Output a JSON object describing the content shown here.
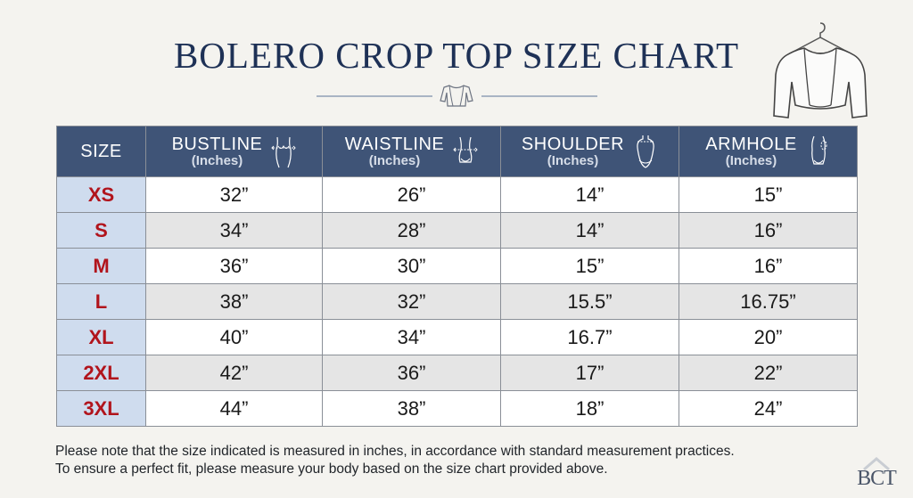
{
  "title": "BOLERO CROP TOP SIZE CHART",
  "table": {
    "headers": [
      {
        "name": "SIZE",
        "unit": ""
      },
      {
        "name": "BUSTLINE",
        "unit": "(Inches)",
        "icon": "bust-measure-icon"
      },
      {
        "name": "WAISTLINE",
        "unit": "(Inches)",
        "icon": "waist-measure-icon"
      },
      {
        "name": "SHOULDER",
        "unit": "(Inches)",
        "icon": "shoulder-measure-icon"
      },
      {
        "name": "ARMHOLE",
        "unit": "(Inches)",
        "icon": "armhole-measure-icon"
      }
    ],
    "rows": [
      {
        "size": "XS",
        "bustline": "32”",
        "waistline": "26”",
        "shoulder": "14”",
        "armhole": "15”"
      },
      {
        "size": "S",
        "bustline": "34”",
        "waistline": "28”",
        "shoulder": "14”",
        "armhole": "16”"
      },
      {
        "size": "M",
        "bustline": "36”",
        "waistline": "30”",
        "shoulder": "15”",
        "armhole": "16”"
      },
      {
        "size": "L",
        "bustline": "38”",
        "waistline": "32”",
        "shoulder": "15.5”",
        "armhole": "16.75”"
      },
      {
        "size": "XL",
        "bustline": "40”",
        "waistline": "34”",
        "shoulder": "16.7”",
        "armhole": "20”"
      },
      {
        "size": "2XL",
        "bustline": "42”",
        "waistline": "36”",
        "shoulder": "17”",
        "armhole": "22”"
      },
      {
        "size": "3XL",
        "bustline": "44”",
        "waistline": "38”",
        "shoulder": "18”",
        "armhole": "24”"
      }
    ]
  },
  "note": {
    "line1": "Please note that the size indicated is measured in inches, in accordance with standard measurement practices.",
    "line2": "To ensure a perfect fit, please measure your body based on the size chart provided above."
  },
  "logo": "BCT",
  "colors": {
    "header_bg": "#3f5477",
    "title": "#1e3156",
    "size_text": "#b1141c",
    "size_bg": "#cfdcee"
  },
  "chart_data": {
    "type": "table",
    "title": "BOLERO CROP TOP SIZE CHART",
    "columns": [
      "SIZE",
      "BUSTLINE (Inches)",
      "WAISTLINE (Inches)",
      "SHOULDER (Inches)",
      "ARMHOLE (Inches)"
    ],
    "rows": [
      [
        "XS",
        32,
        26,
        14,
        15
      ],
      [
        "S",
        34,
        28,
        14,
        16
      ],
      [
        "M",
        36,
        30,
        15,
        16
      ],
      [
        "L",
        38,
        32,
        15.5,
        16.75
      ],
      [
        "XL",
        40,
        34,
        16.7,
        20
      ],
      [
        "2XL",
        42,
        36,
        17,
        22
      ],
      [
        "3XL",
        44,
        38,
        18,
        24
      ]
    ]
  }
}
